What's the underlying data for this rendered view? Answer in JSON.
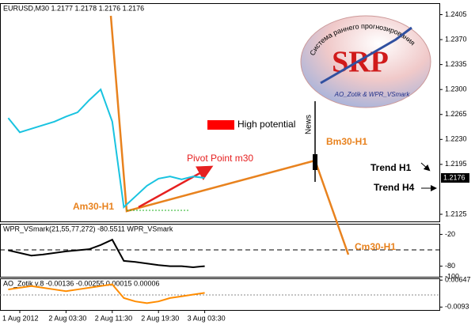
{
  "chart_data": [
    {
      "type": "line",
      "title": "EURUSD,M30  1.2177 1.2178 1.2176 1.2176",
      "color": "#19c3e0",
      "categories": [
        null,
        "1 Aug 2012",
        null,
        null,
        null,
        "2 Aug 03:30",
        null,
        null,
        null,
        "2 Aug 11:30",
        null,
        null,
        null,
        "2 Aug 19:30",
        null,
        null,
        null,
        "3 Aug 03:30",
        null,
        null,
        null,
        null,
        null,
        null,
        null,
        null,
        null,
        null,
        null,
        null,
        null,
        null,
        null,
        null,
        null,
        null,
        null,
        null
      ],
      "values": [
        1.226,
        1.224,
        1.2245,
        1.225,
        1.2255,
        1.2262,
        1.2268,
        1.2285,
        1.23,
        1.2255,
        1.2135,
        1.215,
        1.2165,
        1.2175,
        1.2178,
        1.2174,
        1.2178,
        1.2176,
        null,
        null,
        null,
        null,
        null,
        null,
        null,
        null,
        null,
        null,
        null,
        null,
        null,
        null,
        null,
        null,
        null,
        null,
        null,
        null
      ],
      "ylim": [
        1.2115,
        1.242
      ],
      "yticks": [
        1.2405,
        {
          "value": 1.237,
          "label": "1.2370"
        },
        1.2335,
        {
          "value": 1.23,
          "label": "1.2300"
        },
        1.2265,
        {
          "value": 1.223,
          "label": "1.2230"
        },
        1.2195,
        1.2125
      ],
      "current_price": 1.2176,
      "annotations": [
        "High potential",
        "Pivot Point m30",
        "Am30-H1",
        "Bm30-H1",
        "Cm30-H1",
        "Trend H1",
        "Trend H4",
        "News"
      ],
      "logo": {
        "title": "SRP",
        "caption": "AO_Zotik & WPR_VSmark",
        "arc_text": "Система раннего прогнозирования"
      }
    },
    {
      "type": "line",
      "title": "WPR_VSmark(21,55,77,272) -80.5511  WPR_VSmark",
      "color": "#000000",
      "values": [
        -50,
        -55,
        -60,
        -58,
        -55,
        -52,
        -50,
        -48,
        -40,
        -30,
        -70,
        -72,
        -75,
        -78,
        -80,
        -80,
        -82,
        -80
      ],
      "ylim": [
        -100,
        0
      ],
      "yticks": [
        -20,
        -80,
        -100
      ]
    },
    {
      "type": "line",
      "title": "AO_Zotik v.8 -0.00136 -0.00255 0.00015 0.00006",
      "color": "#ff8c00",
      "values": [
        0.001,
        0.002,
        0.003,
        0.002,
        0.001,
        0.0,
        0.001,
        0.002,
        0.003,
        0.004,
        -0.004,
        -0.006,
        -0.007,
        -0.006,
        -0.004,
        -0.003,
        -0.002,
        -0.001
      ],
      "ylim": [
        -0.011,
        0.0075
      ],
      "yticks": [
        0.00647,
        -0.0093
      ]
    }
  ]
}
